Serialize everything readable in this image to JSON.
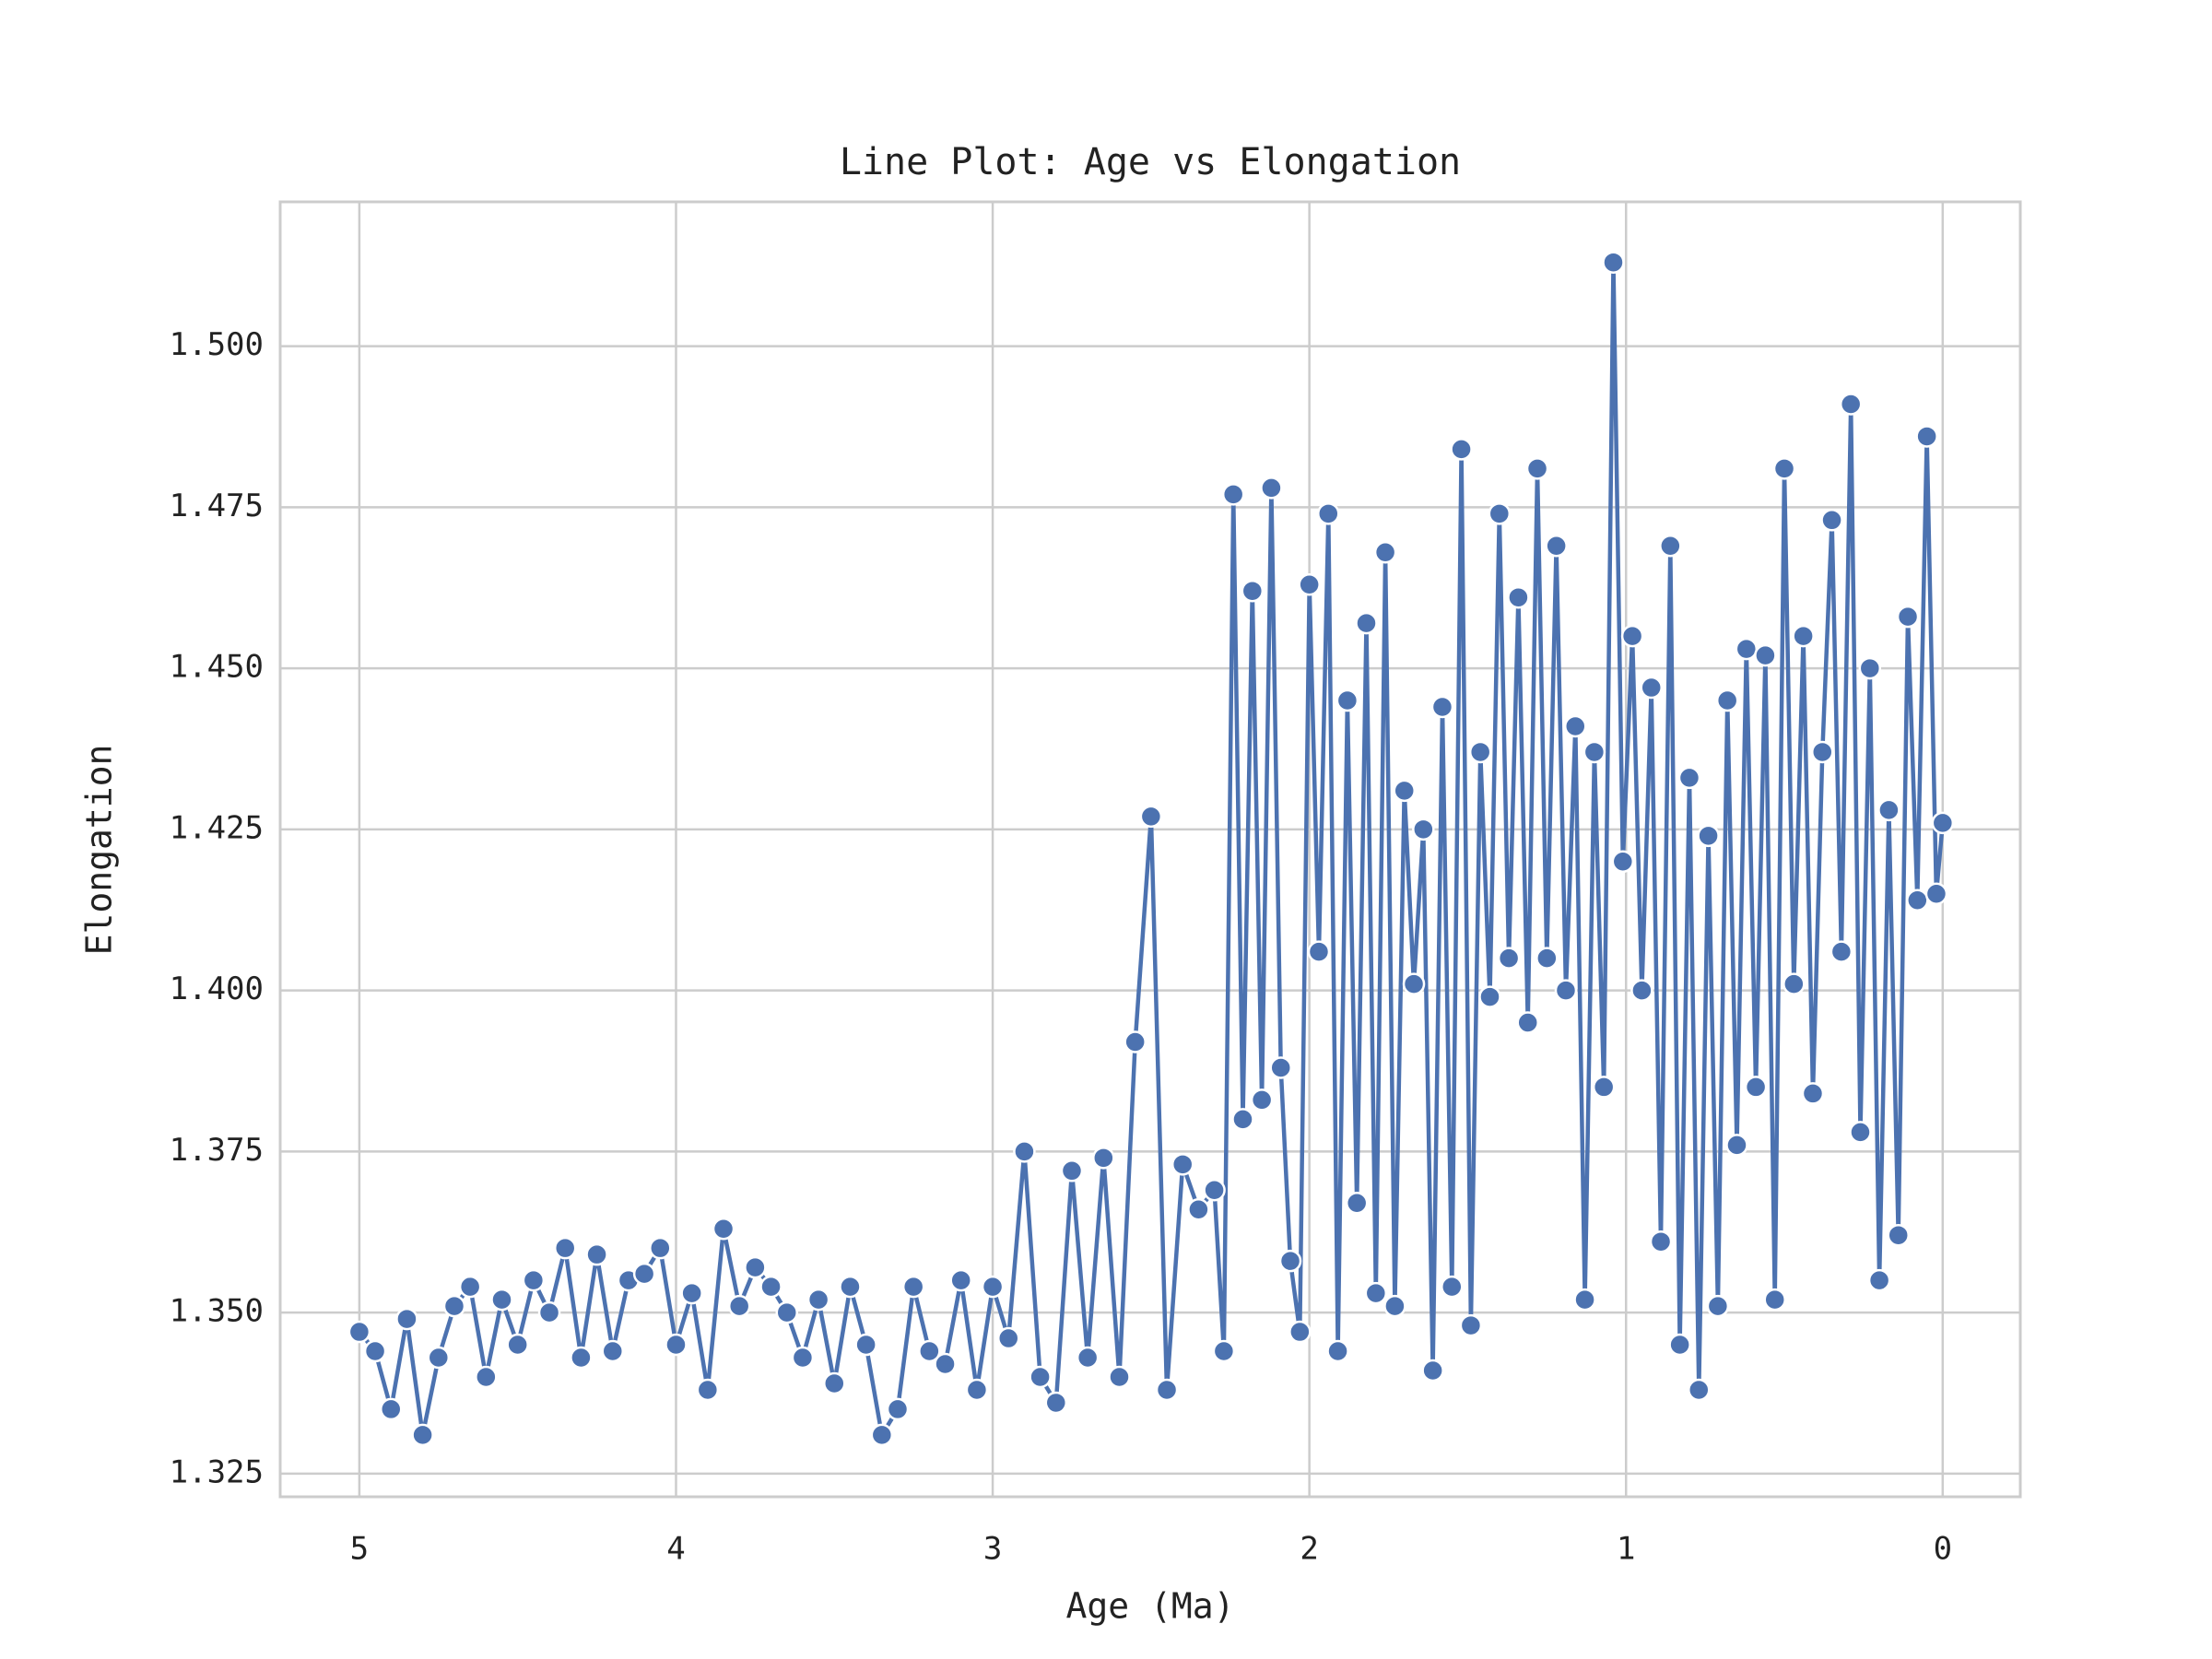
{
  "chart_data": {
    "type": "line",
    "title": "Line Plot: Age vs Elongation",
    "x_label": "Age (Ma)",
    "y_label": "Elongation",
    "x": [
      5.0,
      4.95,
      4.9,
      4.85,
      4.8,
      4.75,
      4.7,
      4.65,
      4.6,
      4.55,
      4.5,
      4.45,
      4.4,
      4.35,
      4.3,
      4.25,
      4.2,
      4.15,
      4.1,
      4.05,
      4.0,
      3.95,
      3.9,
      3.85,
      3.8,
      3.75,
      3.7,
      3.65,
      3.6,
      3.55,
      3.5,
      3.45,
      3.4,
      3.35,
      3.3,
      3.25,
      3.2,
      3.15,
      3.1,
      3.05,
      3.0,
      2.95,
      2.9,
      2.85,
      2.8,
      2.75,
      2.7,
      2.65,
      2.6,
      2.55,
      2.5,
      2.45,
      2.4,
      2.35,
      2.3,
      2.27,
      2.24,
      2.21,
      2.18,
      2.15,
      2.12,
      2.09,
      2.06,
      2.03,
      2.0,
      1.97,
      1.94,
      1.91,
      1.88,
      1.85,
      1.82,
      1.79,
      1.76,
      1.73,
      1.7,
      1.67,
      1.64,
      1.61,
      1.58,
      1.55,
      1.52,
      1.49,
      1.46,
      1.43,
      1.4,
      1.37,
      1.34,
      1.31,
      1.28,
      1.25,
      1.22,
      1.19,
      1.16,
      1.13,
      1.1,
      1.07,
      1.04,
      1.01,
      0.98,
      0.95,
      0.92,
      0.89,
      0.86,
      0.83,
      0.8,
      0.77,
      0.74,
      0.71,
      0.68,
      0.65,
      0.62,
      0.59,
      0.56,
      0.53,
      0.5,
      0.47,
      0.44,
      0.41,
      0.38,
      0.35,
      0.32,
      0.29,
      0.26,
      0.23,
      0.2,
      0.17,
      0.14,
      0.11,
      0.08,
      0.05,
      0.02,
      0.0
    ],
    "series": [
      {
        "name": "Elongation",
        "color": "#4c72b0",
        "values": [
          1.347,
          1.344,
          1.335,
          1.349,
          1.331,
          1.343,
          1.351,
          1.354,
          1.34,
          1.352,
          1.345,
          1.355,
          1.35,
          1.36,
          1.343,
          1.359,
          1.344,
          1.355,
          1.356,
          1.36,
          1.345,
          1.353,
          1.338,
          1.363,
          1.351,
          1.357,
          1.354,
          1.35,
          1.343,
          1.352,
          1.339,
          1.354,
          1.345,
          1.331,
          1.335,
          1.354,
          1.344,
          1.342,
          1.355,
          1.338,
          1.354,
          1.346,
          1.375,
          1.34,
          1.336,
          1.372,
          1.343,
          1.374,
          1.34,
          1.392,
          1.427,
          1.338,
          1.373,
          1.366,
          1.369,
          1.344,
          1.477,
          1.38,
          1.462,
          1.383,
          1.478,
          1.388,
          1.358,
          1.347,
          1.463,
          1.406,
          1.474,
          1.344,
          1.445,
          1.367,
          1.457,
          1.353,
          1.468,
          1.351,
          1.431,
          1.401,
          1.425,
          1.341,
          1.444,
          1.354,
          1.484,
          1.348,
          1.437,
          1.399,
          1.474,
          1.405,
          1.461,
          1.395,
          1.481,
          1.405,
          1.469,
          1.4,
          1.441,
          1.352,
          1.437,
          1.385,
          1.513,
          1.42,
          1.455,
          1.4,
          1.447,
          1.361,
          1.469,
          1.345,
          1.433,
          1.338,
          1.424,
          1.351,
          1.445,
          1.376,
          1.453,
          1.385,
          1.452,
          1.352,
          1.481,
          1.401,
          1.455,
          1.384,
          1.437,
          1.473,
          1.406,
          1.491,
          1.378,
          1.45,
          1.355,
          1.428,
          1.362,
          1.458,
          1.414,
          1.486,
          1.415,
          1.426
        ]
      }
    ],
    "xlim": [
      5.25,
      -0.245
    ],
    "xticks": [
      5,
      4,
      3,
      2,
      1,
      0
    ],
    "ylim": [
      1.3214,
      1.5224
    ],
    "yticks": [
      1.325,
      {
        "value": 1.35,
        "label": "1.350"
      },
      1.375,
      {
        "value": 1.4,
        "label": "1.400"
      },
      1.425,
      {
        "value": 1.45,
        "label": "1.450"
      },
      1.475,
      {
        "value": 1.5,
        "label": "1.500"
      }
    ],
    "grid": true,
    "markers": true
  }
}
